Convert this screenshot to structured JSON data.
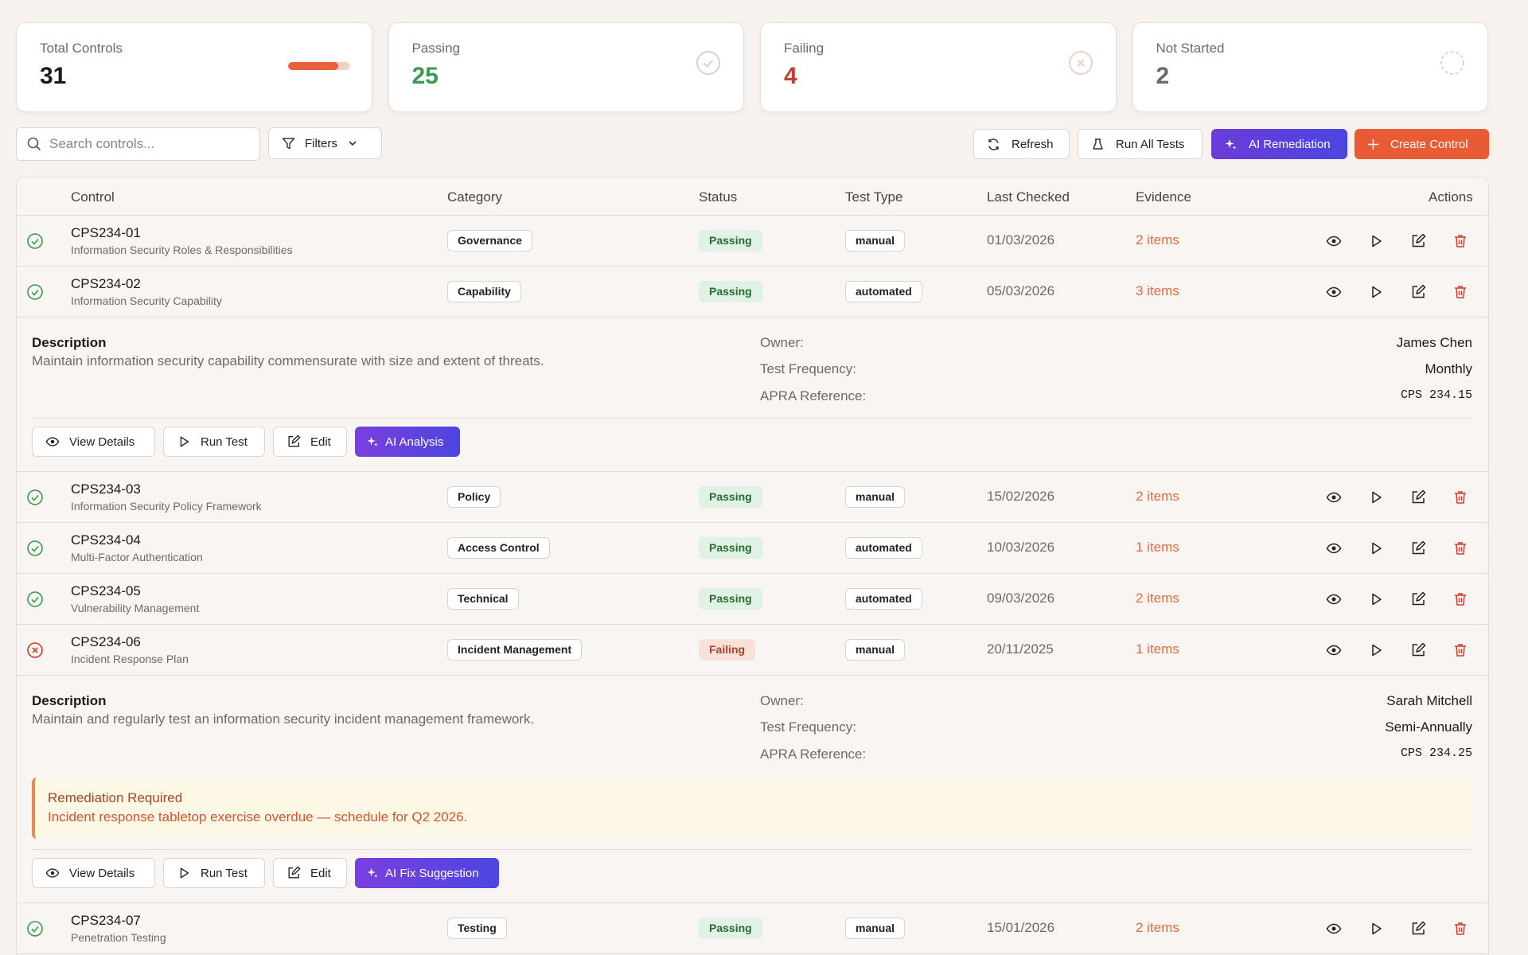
{
  "stats": {
    "total": {
      "label": "Total Controls",
      "value": "31",
      "progress_fraction": 0.81
    },
    "passing": {
      "label": "Passing",
      "value": "25"
    },
    "failing": {
      "label": "Failing",
      "value": "4"
    },
    "not_started": {
      "label": "Not Started",
      "value": "2"
    }
  },
  "toolbar": {
    "search_placeholder": "Search controls...",
    "filters_label": "Filters",
    "refresh_label": "Refresh",
    "run_all_label": "Run All Tests",
    "ai_remediation_label": "AI Remediation",
    "create_label": "Create Control"
  },
  "table": {
    "headers": {
      "control": "Control",
      "category": "Category",
      "status": "Status",
      "test_type": "Test Type",
      "last_checked": "Last Checked",
      "evidence": "Evidence",
      "actions": "Actions"
    },
    "rows": [
      {
        "id": "CPS234-01",
        "name": "Information Security Roles & Responsibilities",
        "category": "Governance",
        "status": "Passing",
        "test_type": "manual",
        "last_checked": "01/03/2026",
        "evidence": "2 items"
      },
      {
        "id": "CPS234-02",
        "name": "Information Security Capability",
        "category": "Capability",
        "status": "Passing",
        "test_type": "automated",
        "last_checked": "05/03/2026",
        "evidence": "3 items"
      },
      {
        "id": "CPS234-03",
        "name": "Information Security Policy Framework",
        "category": "Policy",
        "status": "Passing",
        "test_type": "manual",
        "last_checked": "15/02/2026",
        "evidence": "2 items"
      },
      {
        "id": "CPS234-04",
        "name": "Multi-Factor Authentication",
        "category": "Access Control",
        "status": "Passing",
        "test_type": "automated",
        "last_checked": "10/03/2026",
        "evidence": "1 items"
      },
      {
        "id": "CPS234-05",
        "name": "Vulnerability Management",
        "category": "Technical",
        "status": "Passing",
        "test_type": "automated",
        "last_checked": "09/03/2026",
        "evidence": "2 items"
      },
      {
        "id": "CPS234-06",
        "name": "Incident Response Plan",
        "category": "Incident Management",
        "status": "Failing",
        "test_type": "manual",
        "last_checked": "20/11/2025",
        "evidence": "1 items"
      },
      {
        "id": "CPS234-07",
        "name": "Penetration Testing",
        "category": "Testing",
        "status": "Passing",
        "test_type": "manual",
        "last_checked": "15/01/2026",
        "evidence": "2 items"
      }
    ]
  },
  "details": {
    "cps02": {
      "description_label": "Description",
      "description": "Maintain information security capability commensurate with size and extent of threats.",
      "owner_label": "Owner:",
      "owner": "James Chen",
      "frequency_label": "Test Frequency:",
      "frequency": "Monthly",
      "apra_label": "APRA Reference:",
      "apra": "CPS 234.15",
      "buttons": {
        "view": "View Details",
        "run": "Run Test",
        "edit": "Edit",
        "ai": "AI Analysis"
      }
    },
    "cps06": {
      "description_label": "Description",
      "description": "Maintain and regularly test an information security incident management framework.",
      "owner_label": "Owner:",
      "owner": "Sarah Mitchell",
      "frequency_label": "Test Frequency:",
      "frequency": "Semi-Annually",
      "apra_label": "APRA Reference:",
      "apra": "CPS 234.25",
      "remediation_title": "Remediation Required",
      "remediation_text": "Incident response tabletop exercise overdue — schedule for Q2 2026.",
      "buttons": {
        "view": "View Details",
        "run": "Run Test",
        "edit": "Edit",
        "ai": "AI Fix Suggestion"
      }
    }
  },
  "colors": {
    "accent": "#e85b35",
    "passing": "#3a9a4e",
    "failing": "#c63d2b",
    "ai_purple": "#6b3cd9"
  }
}
